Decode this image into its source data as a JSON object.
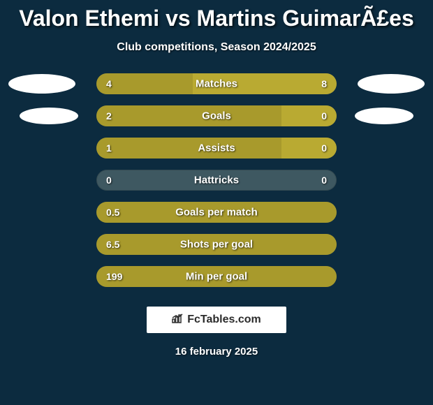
{
  "colors": {
    "background": "#0c2b3f",
    "title_text": "#ffffff",
    "subtitle_text": "#ffffff",
    "track_bg": "#3e5861",
    "fill_left": "#a89a2c",
    "fill_right": "#b9aa32",
    "label_text": "#ffffff",
    "value_text": "#ffffff",
    "footer_bg": "#ffffff",
    "footer_text": "#2b2b2b",
    "date_text": "#ffffff",
    "ellipse": "#ffffff"
  },
  "title": "Valon Ethemi vs Martins GuimarÃ£es",
  "subtitle": "Club competitions, Season 2024/2025",
  "rows": [
    {
      "label": "Matches",
      "left_val": "4",
      "right_val": "8",
      "left_pct": 40,
      "right_pct": 60,
      "ellipse": "big"
    },
    {
      "label": "Goals",
      "left_val": "2",
      "right_val": "0",
      "left_pct": 77,
      "right_pct": 23,
      "ellipse": "small"
    },
    {
      "label": "Assists",
      "left_val": "1",
      "right_val": "0",
      "left_pct": 77,
      "right_pct": 23,
      "ellipse": null
    },
    {
      "label": "Hattricks",
      "left_val": "0",
      "right_val": "0",
      "left_pct": 0,
      "right_pct": 0,
      "ellipse": null
    },
    {
      "label": "Goals per match",
      "left_val": "0.5",
      "right_val": "",
      "left_pct": 100,
      "right_pct": 0,
      "ellipse": null
    },
    {
      "label": "Shots per goal",
      "left_val": "6.5",
      "right_val": "",
      "left_pct": 100,
      "right_pct": 0,
      "ellipse": null
    },
    {
      "label": "Min per goal",
      "left_val": "199",
      "right_val": "",
      "left_pct": 100,
      "right_pct": 0,
      "ellipse": null
    }
  ],
  "footer_brand": "FcTables.com",
  "date": "16 february 2025"
}
